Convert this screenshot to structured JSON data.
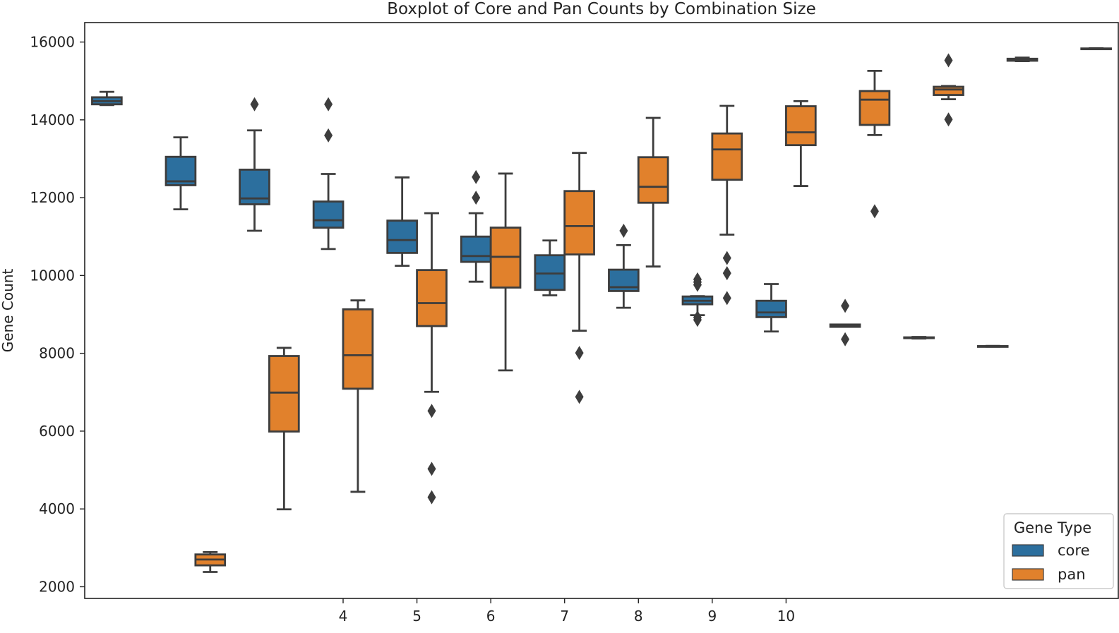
{
  "chart_data": {
    "type": "boxplot",
    "title": "Boxplot of Core and Pan Counts by Combination Size",
    "xlabel": "",
    "ylabel": "Gene Count",
    "ylim": [
      1700,
      16500
    ],
    "yticks": [
      2000,
      4000,
      6000,
      8000,
      10000,
      12000,
      14000,
      16000
    ],
    "categories": [
      "",
      "",
      "",
      "4",
      "5",
      "6",
      "7",
      "8",
      "9",
      "10",
      "",
      "",
      "",
      ""
    ],
    "legend": {
      "title": "Gene Type",
      "placement": "bottom-right",
      "entries": [
        {
          "label": "core",
          "color": "#2C6F9E"
        },
        {
          "label": "pan",
          "color": "#E1812C"
        }
      ]
    },
    "series": [
      {
        "name": "core",
        "color": "#2C6F9E",
        "boxes": [
          {
            "whislo": 14380,
            "q1": 14400,
            "med": 14480,
            "q3": 14580,
            "whishi": 14720,
            "fliers": []
          },
          {
            "whislo": 11700,
            "q1": 12320,
            "med": 12420,
            "q3": 13050,
            "whishi": 13550,
            "fliers": []
          },
          {
            "whislo": 11150,
            "q1": 11830,
            "med": 11980,
            "q3": 12720,
            "whishi": 13730,
            "fliers": [
              14400
            ]
          },
          {
            "whislo": 10680,
            "q1": 11230,
            "med": 11420,
            "q3": 11900,
            "whishi": 12610,
            "fliers": [
              13600,
              14400
            ]
          },
          {
            "whislo": 10250,
            "q1": 10580,
            "med": 10910,
            "q3": 11410,
            "whishi": 12520,
            "fliers": []
          },
          {
            "whislo": 9840,
            "q1": 10350,
            "med": 10500,
            "q3": 11000,
            "whishi": 11600,
            "fliers": [
              12000,
              12530
            ]
          },
          {
            "whislo": 9490,
            "q1": 9630,
            "med": 10050,
            "q3": 10520,
            "whishi": 10900,
            "fliers": []
          },
          {
            "whislo": 9170,
            "q1": 9600,
            "med": 9700,
            "q3": 10150,
            "whishi": 10780,
            "fliers": [
              11150
            ]
          },
          {
            "whislo": 8980,
            "q1": 9260,
            "med": 9350,
            "q3": 9460,
            "whishi": 9470,
            "fliers": [
              8860,
              8920,
              9760,
              9830,
              9900
            ]
          },
          {
            "whislo": 8560,
            "q1": 8930,
            "med": 9050,
            "q3": 9350,
            "whishi": 9780,
            "fliers": []
          },
          {
            "whislo": 8680,
            "q1": 8680,
            "med": 8710,
            "q3": 8740,
            "whishi": 8740,
            "fliers": [
              8360,
              9220
            ]
          },
          {
            "whislo": 8380,
            "q1": 8390,
            "med": 8400,
            "q3": 8410,
            "whishi": 8420,
            "fliers": []
          },
          {
            "whislo": 8170,
            "q1": 8170,
            "med": 8180,
            "q3": 8185,
            "whishi": 8190,
            "fliers": []
          },
          null
        ]
      },
      {
        "name": "pan",
        "color": "#E1812C",
        "boxes": [
          null,
          {
            "whislo": 2380,
            "q1": 2550,
            "med": 2700,
            "q3": 2830,
            "whishi": 2890,
            "fliers": []
          },
          {
            "whislo": 3990,
            "q1": 5990,
            "med": 6990,
            "q3": 7930,
            "whishi": 8140,
            "fliers": []
          },
          {
            "whislo": 4440,
            "q1": 7090,
            "med": 7950,
            "q3": 9130,
            "whishi": 9360,
            "fliers": []
          },
          {
            "whislo": 7010,
            "q1": 8700,
            "med": 9290,
            "q3": 10140,
            "whishi": 11600,
            "fliers": [
              4300,
              5030,
              6520
            ]
          },
          {
            "whislo": 7560,
            "q1": 9690,
            "med": 10480,
            "q3": 11230,
            "whishi": 12620,
            "fliers": []
          },
          {
            "whislo": 8580,
            "q1": 10540,
            "med": 11270,
            "q3": 12170,
            "whishi": 13150,
            "fliers": [
              6880,
              8010
            ]
          },
          {
            "whislo": 10230,
            "q1": 11870,
            "med": 12280,
            "q3": 13040,
            "whishi": 14050,
            "fliers": []
          },
          {
            "whislo": 11050,
            "q1": 12460,
            "med": 13240,
            "q3": 13650,
            "whishi": 14360,
            "fliers": [
              9420,
              10060,
              10450
            ]
          },
          {
            "whislo": 12300,
            "q1": 13350,
            "med": 13680,
            "q3": 14350,
            "whishi": 14480,
            "fliers": []
          },
          {
            "whislo": 13610,
            "q1": 13870,
            "med": 14520,
            "q3": 14740,
            "whishi": 15260,
            "fliers": [
              11650
            ]
          },
          {
            "whislo": 14530,
            "q1": 14640,
            "med": 14780,
            "q3": 14850,
            "whishi": 14870,
            "fliers": [
              14010,
              15530
            ]
          },
          {
            "whislo": 15510,
            "q1": 15520,
            "med": 15540,
            "q3": 15570,
            "whishi": 15600,
            "fliers": []
          },
          {
            "whislo": 15830,
            "q1": 15830,
            "med": 15830,
            "q3": 15835,
            "whishi": 15840,
            "fliers": []
          }
        ]
      }
    ]
  }
}
